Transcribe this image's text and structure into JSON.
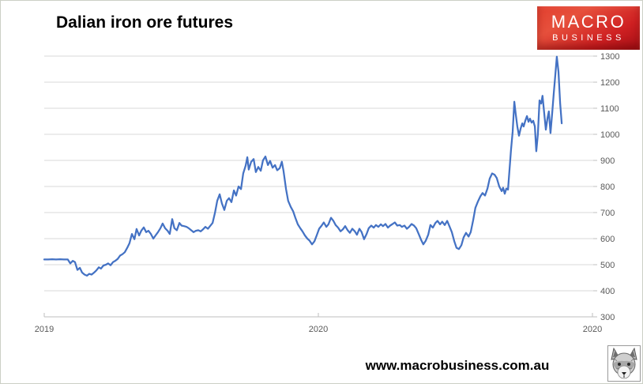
{
  "header": {
    "title": "Dalian iron ore futures"
  },
  "logo": {
    "line1": "MACRO",
    "line2": "BUSINESS",
    "bg_color": "#cc1f1f",
    "text_color": "#ffffff"
  },
  "footer": {
    "url": "www.macrobusiness.com.au"
  },
  "chart_data": {
    "type": "line",
    "title": "Dalian iron ore futures",
    "line_color": "#4472C4",
    "grid_color": "#D9D9D9",
    "axis_color": "#BFBFBF",
    "label_color": "#595959",
    "grid": true,
    "legend": "none",
    "ylim": [
      300,
      1300
    ],
    "y_ticks": [
      300,
      400,
      500,
      600,
      700,
      800,
      900,
      1000,
      1100,
      1200,
      1300
    ],
    "y_tick_side": "right",
    "x_ticks": [
      {
        "t": 0,
        "label": "2019"
      },
      {
        "t": 1,
        "label": "2020"
      },
      {
        "t": 2,
        "label": "2020"
      }
    ],
    "series": [
      [
        0.0,
        520
      ],
      [
        0.014,
        520
      ],
      [
        0.029,
        521
      ],
      [
        0.043,
        520
      ],
      [
        0.058,
        521
      ],
      [
        0.072,
        520
      ],
      [
        0.086,
        520
      ],
      [
        0.095,
        505
      ],
      [
        0.104,
        515
      ],
      [
        0.112,
        510
      ],
      [
        0.121,
        480
      ],
      [
        0.13,
        488
      ],
      [
        0.138,
        470
      ],
      [
        0.147,
        462
      ],
      [
        0.156,
        458
      ],
      [
        0.164,
        465
      ],
      [
        0.173,
        462
      ],
      [
        0.182,
        470
      ],
      [
        0.19,
        478
      ],
      [
        0.199,
        490
      ],
      [
        0.207,
        485
      ],
      [
        0.216,
        497
      ],
      [
        0.225,
        500
      ],
      [
        0.233,
        505
      ],
      [
        0.242,
        498
      ],
      [
        0.251,
        510
      ],
      [
        0.259,
        515
      ],
      [
        0.268,
        522
      ],
      [
        0.277,
        535
      ],
      [
        0.285,
        540
      ],
      [
        0.294,
        548
      ],
      [
        0.303,
        565
      ],
      [
        0.311,
        582
      ],
      [
        0.32,
        618
      ],
      [
        0.329,
        598
      ],
      [
        0.337,
        637
      ],
      [
        0.346,
        612
      ],
      [
        0.354,
        630
      ],
      [
        0.363,
        643
      ],
      [
        0.372,
        625
      ],
      [
        0.38,
        630
      ],
      [
        0.389,
        618
      ],
      [
        0.398,
        600
      ],
      [
        0.406,
        612
      ],
      [
        0.415,
        625
      ],
      [
        0.424,
        640
      ],
      [
        0.432,
        658
      ],
      [
        0.441,
        640
      ],
      [
        0.45,
        630
      ],
      [
        0.458,
        618
      ],
      [
        0.467,
        675
      ],
      [
        0.475,
        640
      ],
      [
        0.484,
        632
      ],
      [
        0.493,
        660
      ],
      [
        0.501,
        650
      ],
      [
        0.51,
        648
      ],
      [
        0.519,
        645
      ],
      [
        0.527,
        640
      ],
      [
        0.536,
        632
      ],
      [
        0.545,
        625
      ],
      [
        0.553,
        630
      ],
      [
        0.562,
        632
      ],
      [
        0.571,
        628
      ],
      [
        0.579,
        635
      ],
      [
        0.588,
        645
      ],
      [
        0.597,
        638
      ],
      [
        0.605,
        648
      ],
      [
        0.614,
        660
      ],
      [
        0.623,
        700
      ],
      [
        0.631,
        745
      ],
      [
        0.64,
        770
      ],
      [
        0.648,
        735
      ],
      [
        0.657,
        710
      ],
      [
        0.666,
        745
      ],
      [
        0.674,
        755
      ],
      [
        0.683,
        740
      ],
      [
        0.692,
        785
      ],
      [
        0.7,
        765
      ],
      [
        0.709,
        800
      ],
      [
        0.718,
        790
      ],
      [
        0.726,
        850
      ],
      [
        0.735,
        880
      ],
      [
        0.741,
        912
      ],
      [
        0.746,
        865
      ],
      [
        0.755,
        895
      ],
      [
        0.764,
        905
      ],
      [
        0.772,
        855
      ],
      [
        0.781,
        875
      ],
      [
        0.79,
        860
      ],
      [
        0.798,
        900
      ],
      [
        0.807,
        915
      ],
      [
        0.816,
        882
      ],
      [
        0.824,
        898
      ],
      [
        0.833,
        872
      ],
      [
        0.842,
        882
      ],
      [
        0.85,
        862
      ],
      [
        0.859,
        870
      ],
      [
        0.867,
        895
      ],
      [
        0.873,
        860
      ],
      [
        0.882,
        790
      ],
      [
        0.89,
        745
      ],
      [
        0.899,
        722
      ],
      [
        0.908,
        705
      ],
      [
        0.916,
        680
      ],
      [
        0.925,
        655
      ],
      [
        0.934,
        640
      ],
      [
        0.942,
        628
      ],
      [
        0.951,
        612
      ],
      [
        0.96,
        600
      ],
      [
        0.968,
        592
      ],
      [
        0.977,
        578
      ],
      [
        0.986,
        590
      ],
      [
        0.994,
        612
      ],
      [
        1.003,
        638
      ],
      [
        1.012,
        650
      ],
      [
        1.02,
        662
      ],
      [
        1.029,
        645
      ],
      [
        1.037,
        655
      ],
      [
        1.046,
        680
      ],
      [
        1.055,
        668
      ],
      [
        1.063,
        652
      ],
      [
        1.072,
        642
      ],
      [
        1.081,
        628
      ],
      [
        1.089,
        635
      ],
      [
        1.098,
        648
      ],
      [
        1.107,
        632
      ],
      [
        1.115,
        622
      ],
      [
        1.124,
        638
      ],
      [
        1.133,
        628
      ],
      [
        1.141,
        615
      ],
      [
        1.15,
        638
      ],
      [
        1.158,
        625
      ],
      [
        1.167,
        598
      ],
      [
        1.176,
        618
      ],
      [
        1.184,
        640
      ],
      [
        1.193,
        650
      ],
      [
        1.202,
        642
      ],
      [
        1.21,
        652
      ],
      [
        1.219,
        645
      ],
      [
        1.228,
        655
      ],
      [
        1.236,
        648
      ],
      [
        1.245,
        656
      ],
      [
        1.254,
        642
      ],
      [
        1.262,
        650
      ],
      [
        1.271,
        656
      ],
      [
        1.279,
        662
      ],
      [
        1.288,
        650
      ],
      [
        1.297,
        652
      ],
      [
        1.305,
        645
      ],
      [
        1.314,
        650
      ],
      [
        1.323,
        638
      ],
      [
        1.331,
        645
      ],
      [
        1.34,
        656
      ],
      [
        1.349,
        650
      ],
      [
        1.357,
        640
      ],
      [
        1.366,
        618
      ],
      [
        1.375,
        595
      ],
      [
        1.383,
        578
      ],
      [
        1.392,
        592
      ],
      [
        1.401,
        615
      ],
      [
        1.409,
        652
      ],
      [
        1.418,
        642
      ],
      [
        1.427,
        660
      ],
      [
        1.435,
        668
      ],
      [
        1.444,
        655
      ],
      [
        1.452,
        665
      ],
      [
        1.461,
        652
      ],
      [
        1.47,
        668
      ],
      [
        1.478,
        648
      ],
      [
        1.487,
        625
      ],
      [
        1.496,
        590
      ],
      [
        1.504,
        565
      ],
      [
        1.513,
        560
      ],
      [
        1.522,
        575
      ],
      [
        1.53,
        605
      ],
      [
        1.539,
        622
      ],
      [
        1.548,
        608
      ],
      [
        1.556,
        625
      ],
      [
        1.565,
        672
      ],
      [
        1.573,
        718
      ],
      [
        1.582,
        742
      ],
      [
        1.591,
        762
      ],
      [
        1.599,
        775
      ],
      [
        1.608,
        765
      ],
      [
        1.617,
        792
      ],
      [
        1.625,
        830
      ],
      [
        1.634,
        850
      ],
      [
        1.643,
        845
      ],
      [
        1.651,
        832
      ],
      [
        1.66,
        800
      ],
      [
        1.669,
        782
      ],
      [
        1.674,
        795
      ],
      [
        1.68,
        772
      ],
      [
        1.686,
        792
      ],
      [
        1.692,
        788
      ],
      [
        1.697,
        860
      ],
      [
        1.703,
        940
      ],
      [
        1.709,
        1010
      ],
      [
        1.715,
        1125
      ],
      [
        1.72,
        1080
      ],
      [
        1.726,
        1030
      ],
      [
        1.732,
        995
      ],
      [
        1.738,
        1022
      ],
      [
        1.744,
        1042
      ],
      [
        1.749,
        1030
      ],
      [
        1.755,
        1052
      ],
      [
        1.761,
        1070
      ],
      [
        1.767,
        1048
      ],
      [
        1.772,
        1060
      ],
      [
        1.778,
        1045
      ],
      [
        1.784,
        1052
      ],
      [
        1.79,
        1030
      ],
      [
        1.795,
        935
      ],
      [
        1.801,
        1000
      ],
      [
        1.807,
        1130
      ],
      [
        1.813,
        1118
      ],
      [
        1.818,
        1148
      ],
      [
        1.824,
        1082
      ],
      [
        1.83,
        1018
      ],
      [
        1.836,
        1062
      ],
      [
        1.841,
        1088
      ],
      [
        1.847,
        1005
      ],
      [
        1.853,
        1080
      ],
      [
        1.859,
        1160
      ],
      [
        1.865,
        1235
      ],
      [
        1.87,
        1298
      ],
      [
        1.876,
        1240
      ],
      [
        1.882,
        1120
      ],
      [
        1.888,
        1042
      ]
    ]
  }
}
